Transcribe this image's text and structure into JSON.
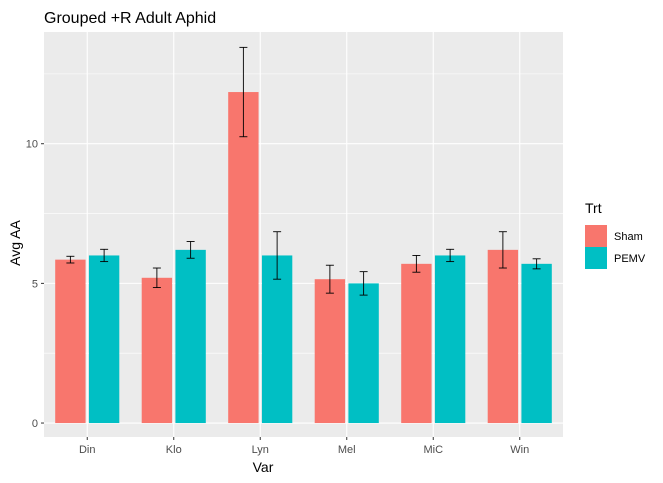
{
  "chart_data": {
    "type": "bar",
    "title": "Grouped +R Adult Aphid",
    "xlabel": "Var",
    "ylabel": "Avg AA",
    "categories": [
      "Din",
      "Klo",
      "Lyn",
      "Mel",
      "MiC",
      "Win"
    ],
    "ylim": [
      -0.5,
      14
    ],
    "yticks": [
      0,
      5,
      10
    ],
    "legend": {
      "title": "Trt",
      "position": "right"
    },
    "grid": true,
    "series": [
      {
        "name": "Sham",
        "color": "#F8766D",
        "values": [
          5.85,
          5.2,
          11.85,
          5.15,
          5.7,
          6.2
        ],
        "error": [
          0.12,
          0.35,
          1.6,
          0.5,
          0.3,
          0.65
        ]
      },
      {
        "name": "PEMV",
        "color": "#00BFC4",
        "values": [
          6.0,
          6.2,
          6.0,
          5.0,
          6.0,
          5.7
        ],
        "error": [
          0.22,
          0.3,
          0.85,
          0.42,
          0.22,
          0.18
        ]
      }
    ]
  }
}
